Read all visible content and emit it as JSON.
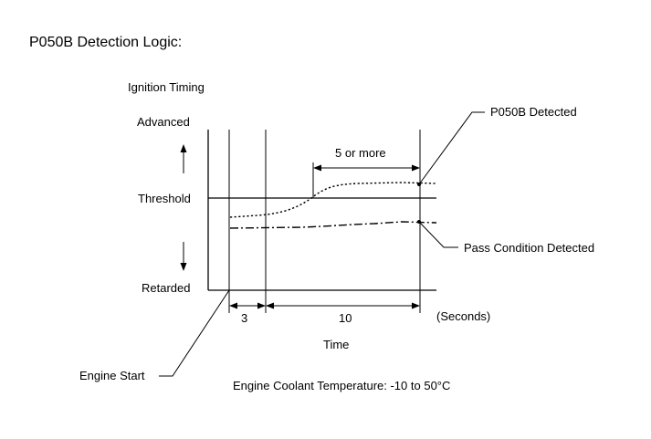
{
  "title": "P050B Detection Logic:",
  "y_axis": {
    "label": "Ignition Timing",
    "advanced": "Advanced",
    "threshold": "Threshold",
    "retarded": "Retarded"
  },
  "x_axis": {
    "label": "Time",
    "unit": "(Seconds)",
    "interval_1": "3",
    "interval_2": "10"
  },
  "annotations": {
    "duration": "5 or more",
    "detected": "P050B Detected",
    "pass": "Pass Condition Detected",
    "engine_start": "Engine Start"
  },
  "condition": "Engine Coolant Temperature: -10 to 50°C"
}
